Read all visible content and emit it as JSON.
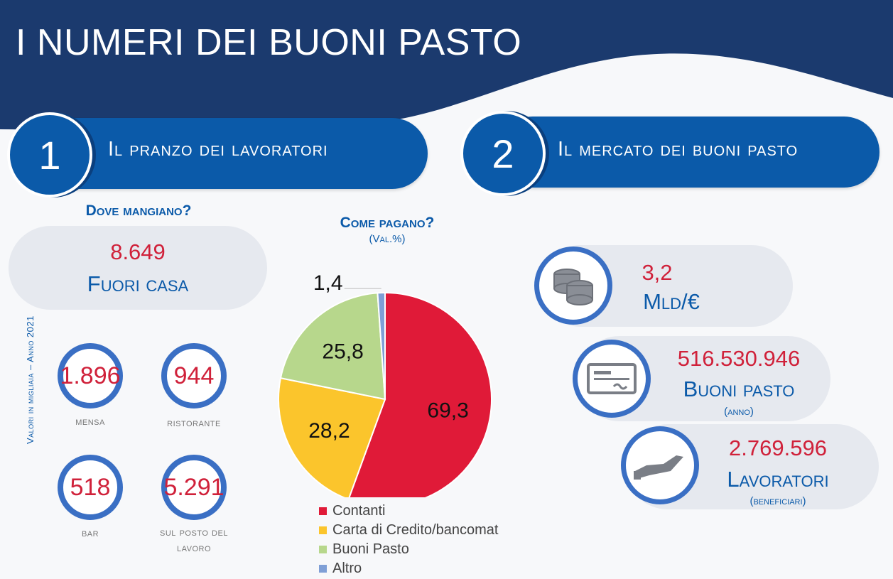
{
  "header": {
    "title": "I NUMERI DEI BUONI PASTO"
  },
  "colors": {
    "navy": "#1b3a6e",
    "blue": "#0b5aa9",
    "red": "#d0213a",
    "ring_blue": "#3a6fc4"
  },
  "section1": {
    "number": "1",
    "title": "Il pranzo dei lavoratori",
    "where_heading": "Dove mangiano?",
    "total": {
      "value": "8.649",
      "label": "Fuori casa"
    },
    "locations": [
      {
        "value": "1.896",
        "label": "mensa"
      },
      {
        "value": "944",
        "label": "ristorante"
      },
      {
        "value": "518",
        "label": "bar"
      },
      {
        "value": "5.291",
        "label": "sul posto del lavoro"
      }
    ],
    "side_note": "Valori in migliaia – Anno 2021"
  },
  "chart_data": {
    "type": "pie",
    "title": "Come pagano?",
    "subtitle": "(Val.%)",
    "categories": [
      "Contanti",
      "Carta di Credito/bancomat",
      "Buoni Pasto",
      "Altro"
    ],
    "values": [
      69.3,
      28.2,
      25.8,
      1.4
    ],
    "data_labels": [
      "69,3",
      "28,2",
      "25,8",
      "1,4"
    ],
    "colors": [
      "#e01a38",
      "#fbc52c",
      "#b7d78c",
      "#7f9fd6"
    ],
    "legend_position": "bottom"
  },
  "section2": {
    "number": "2",
    "title": "Il mercato dei buoni pasto",
    "stats": [
      {
        "icon": "coins-icon",
        "value": "3,2",
        "label": "Mld/€",
        "note": ""
      },
      {
        "icon": "check-icon",
        "value": "516.530.946",
        "label": "Buoni pasto",
        "note": "(anno)"
      },
      {
        "icon": "hand-icon",
        "value": "2.769.596",
        "label": "Lavoratori",
        "note": "(beneficiari)"
      }
    ]
  }
}
